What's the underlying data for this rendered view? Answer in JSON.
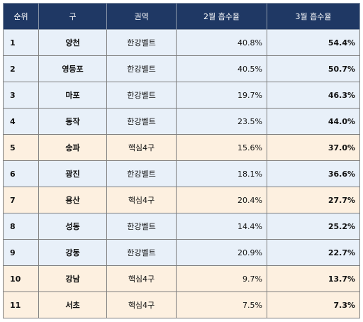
{
  "table": {
    "headers": {
      "rank": "순위",
      "gu": "구",
      "zone": "권역",
      "feb": "2월 흡수율",
      "mar": "3월 흡수율"
    },
    "rows": [
      {
        "rank": "1",
        "gu": "양천",
        "zone": "한강벨트",
        "feb": "40.8%",
        "mar": "54.4%",
        "type": "belt"
      },
      {
        "rank": "2",
        "gu": "영등포",
        "zone": "한강벨트",
        "feb": "40.5%",
        "mar": "50.7%",
        "type": "belt"
      },
      {
        "rank": "3",
        "gu": "마포",
        "zone": "한강벨트",
        "feb": "19.7%",
        "mar": "46.3%",
        "type": "belt"
      },
      {
        "rank": "4",
        "gu": "동작",
        "zone": "한강벨트",
        "feb": "23.5%",
        "mar": "44.0%",
        "type": "belt"
      },
      {
        "rank": "5",
        "gu": "송파",
        "zone": "핵심4구",
        "feb": "15.6%",
        "mar": "37.0%",
        "type": "core"
      },
      {
        "rank": "6",
        "gu": "광진",
        "zone": "한강벨트",
        "feb": "18.1%",
        "mar": "36.6%",
        "type": "belt"
      },
      {
        "rank": "7",
        "gu": "용산",
        "zone": "핵심4구",
        "feb": "20.4%",
        "mar": "27.7%",
        "type": "core"
      },
      {
        "rank": "8",
        "gu": "성동",
        "zone": "한강벨트",
        "feb": "14.4%",
        "mar": "25.2%",
        "type": "belt"
      },
      {
        "rank": "9",
        "gu": "강동",
        "zone": "한강벨트",
        "feb": "20.9%",
        "mar": "22.7%",
        "type": "belt"
      },
      {
        "rank": "10",
        "gu": "강남",
        "zone": "핵심4구",
        "feb": "9.7%",
        "mar": "13.7%",
        "type": "core"
      },
      {
        "rank": "11",
        "gu": "서초",
        "zone": "핵심4구",
        "feb": "7.5%",
        "mar": "7.3%",
        "type": "core"
      }
    ]
  },
  "colors": {
    "header_bg": "#1f3864",
    "belt_row_bg": "#e8f0f9",
    "core_row_bg": "#fdf0e0"
  }
}
